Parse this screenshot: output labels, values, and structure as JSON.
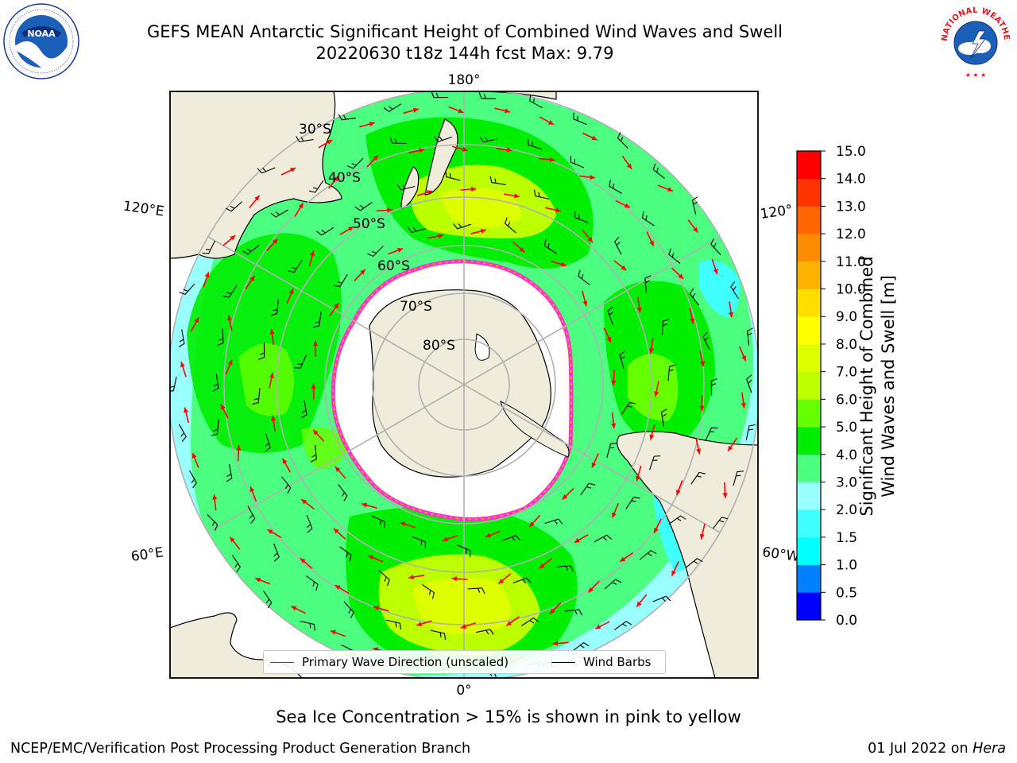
{
  "title_line1": "GEFS MEAN Antarctic Significant Height of Combined Wind Waves and Swell",
  "title_line2": "20220630 t18z 144h fcst   Max: 9.79",
  "logos": {
    "left": "noaa-logo",
    "right": "nws-logo",
    "noaa_text": "NOAA",
    "nws_ring_text": "NATIONAL WEATHER SERVICE"
  },
  "map": {
    "projection": "south-polar-stereographic",
    "longitude_labels": {
      "top": "180°",
      "bottom": "0°",
      "left_upper": "120°E",
      "left_lower": "60°E",
      "right_upper": "120°",
      "right_lower": "60°W"
    },
    "latitude_labels": [
      "30°S",
      "40°S",
      "50°S",
      "60°S",
      "70°S",
      "80°S"
    ],
    "colors": {
      "land": "#efecdc",
      "ice": "#ffffff",
      "ice_edge": "#ff33cc",
      "ice_edge_inner": "#ffb300",
      "grid": "#b0b0b0",
      "arrow": "#ff0000",
      "barb": "#000000"
    }
  },
  "colorbar": {
    "label_line1": "Significant Height of Combined",
    "label_line2": "Wind Waves and Swell [m]",
    "ticks": [
      "0.0",
      "0.5",
      "1.0",
      "1.5",
      "2.0",
      "3.0",
      "4.0",
      "5.0",
      "6.0",
      "7.0",
      "8.0",
      "9.0",
      "10.0",
      "11.0",
      "12.0",
      "13.0",
      "14.0",
      "15.0"
    ],
    "colors": [
      "#0000ff",
      "#0080ff",
      "#00ffff",
      "#40ffff",
      "#99ffff",
      "#4dff80",
      "#00ee00",
      "#66ff00",
      "#bbff00",
      "#ddff00",
      "#ffff00",
      "#ffdd00",
      "#ffb300",
      "#ff8c00",
      "#ff6600",
      "#ff3300",
      "#ff0000"
    ]
  },
  "legend": {
    "wave_direction": "Primary Wave Direction (unscaled)",
    "wind_barbs": "Wind Barbs"
  },
  "footer": {
    "ice_note": "Sea Ice Concentration > 15% is shown in pink to yellow",
    "credit": "NCEP/EMC/Verification Post Processing Product Generation Branch",
    "date": "01 Jul 2022 on",
    "date_host": "Hera"
  }
}
